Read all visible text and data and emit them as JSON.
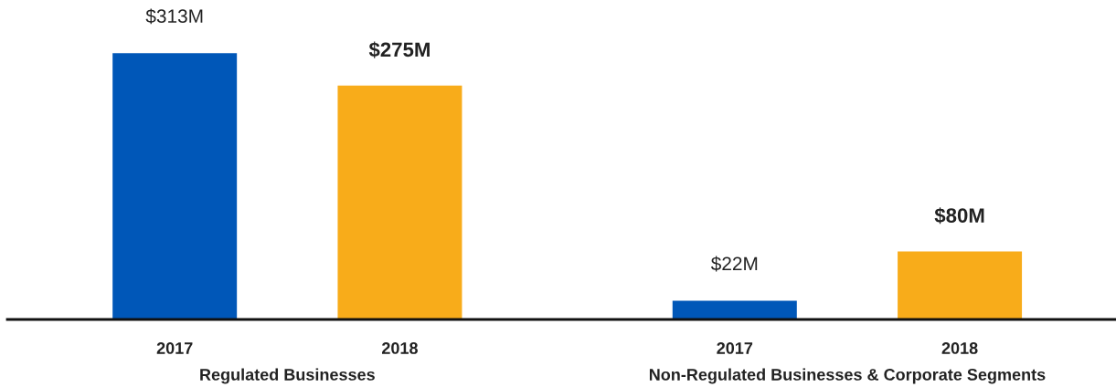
{
  "chart_data": {
    "type": "bar",
    "categories": [
      "Regulated Businesses",
      "Non-Regulated Businesses & Corporate Segments"
    ],
    "series": [
      {
        "name": "2017",
        "color": "#0057b8",
        "values": [
          313,
          22
        ],
        "value_labels": [
          "$313M",
          "$22M"
        ]
      },
      {
        "name": "2018",
        "color": "#f8ac1a",
        "values": [
          275,
          80
        ],
        "value_labels": [
          "$275M",
          "$80M"
        ]
      }
    ],
    "tick_labels": "x"
  }
}
